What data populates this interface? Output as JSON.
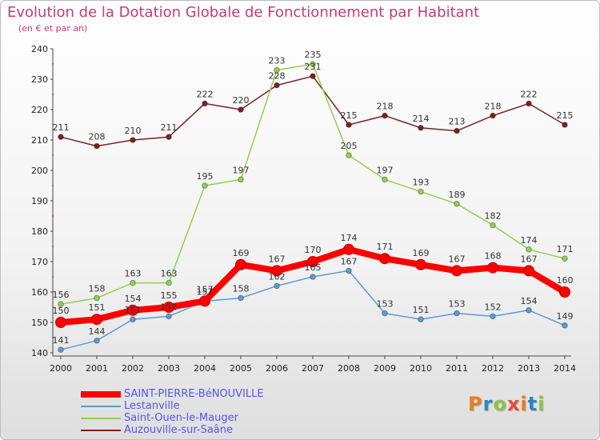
{
  "header": {
    "title": "Evolution de la Dotation Globale de Fonctionnement par Habitant",
    "subtitle": "(en € et par an)"
  },
  "logo": {
    "text": "Proxiti",
    "colors": [
      "#e67e22",
      "#2e86c1",
      "#8bc34a",
      "#e74c3c",
      "#e67e22",
      "#2e86c1",
      "#8bc34a"
    ]
  },
  "chart_data": {
    "type": "line",
    "title": "Evolution de la Dotation Globale de Fonctionnement par Habitant",
    "subtitle": "(en € et par an)",
    "xlabel": "",
    "ylabel": "",
    "x": [
      2000,
      2001,
      2002,
      2003,
      2004,
      2005,
      2006,
      2007,
      2008,
      2009,
      2010,
      2011,
      2012,
      2013,
      2014
    ],
    "yticks": [
      140,
      150,
      160,
      170,
      180,
      190,
      200,
      210,
      220,
      230,
      240
    ],
    "ylim": [
      140,
      240
    ],
    "grid": false,
    "legend_position": "bottom",
    "series": [
      {
        "name": "SAINT-PIERRE-BéNOUVILLE",
        "color": "#ff0000",
        "label_color": "#5555ee",
        "bold": true,
        "values": [
          150,
          151,
          154,
          155,
          157,
          169,
          167,
          170,
          174,
          171,
          169,
          167,
          168,
          167,
          160
        ]
      },
      {
        "name": "Lestanville",
        "color": "#5b9bd5",
        "label_color": "#4a86c5",
        "bold": false,
        "values": [
          141,
          144,
          151,
          152,
          157,
          158,
          162,
          165,
          167,
          153,
          151,
          153,
          152,
          154,
          149
        ]
      },
      {
        "name": "Saint-Ouen-le-Mauger",
        "color": "#92d050",
        "label_color": "#5fae2e",
        "bold": false,
        "values": [
          156,
          158,
          163,
          163,
          195,
          197,
          233,
          235,
          205,
          197,
          193,
          189,
          182,
          174,
          171
        ]
      },
      {
        "name": "Auzouville-sur-Saâne",
        "color": "#7f2020",
        "label_color": "#5b2a2a",
        "bold": false,
        "values": [
          211,
          208,
          210,
          211,
          222,
          220,
          228,
          231,
          215,
          218,
          214,
          213,
          218,
          222,
          215
        ]
      }
    ]
  }
}
